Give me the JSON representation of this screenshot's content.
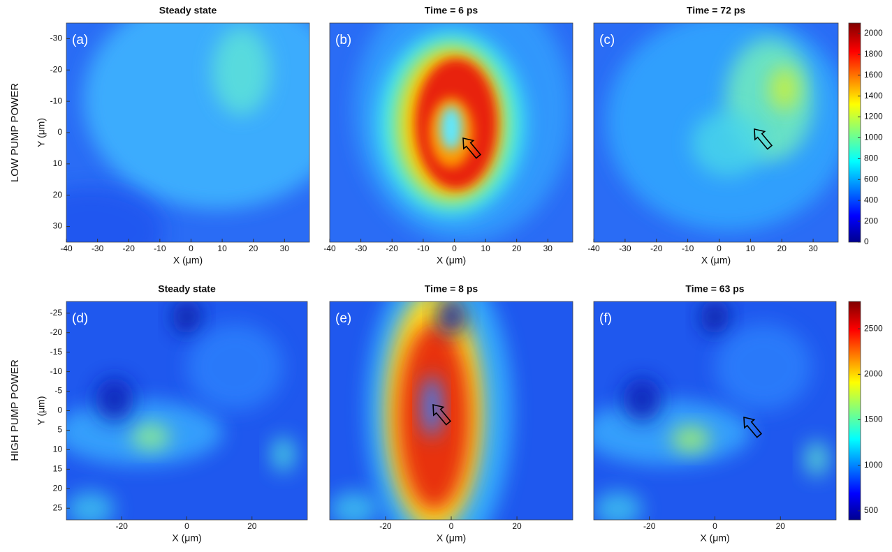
{
  "row_labels": [
    "LOW PUMP POWER",
    "HIGH PUMP POWER"
  ],
  "chart_data": [
    {
      "type": "heatmap",
      "panel": "(a)",
      "title": "Steady state",
      "xlabel": "X (μm)",
      "ylabel": "Y (μm)",
      "xlim": [
        -40,
        38
      ],
      "ylim": [
        -35,
        35
      ],
      "xticks": [
        -40,
        -30,
        -20,
        -10,
        0,
        10,
        20,
        30
      ],
      "yticks": [
        -30,
        -20,
        -10,
        0,
        10,
        20,
        30
      ]
    },
    {
      "type": "heatmap",
      "panel": "(b)",
      "title": "Time = 6 ps",
      "xlabel": "X (μm)",
      "xlim": [
        -40,
        38
      ],
      "ylim": [
        -35,
        35
      ],
      "xticks": [
        -40,
        -30,
        -20,
        -10,
        0,
        10,
        20,
        30
      ]
    },
    {
      "type": "heatmap",
      "panel": "(c)",
      "title": "Time = 72 ps",
      "xlabel": "X (μm)",
      "xlim": [
        -40,
        38
      ],
      "ylim": [
        -35,
        35
      ],
      "xticks": [
        -40,
        -30,
        -20,
        -10,
        0,
        10,
        20,
        30
      ],
      "clim": [
        0,
        2100
      ],
      "cticks": [
        0,
        200,
        400,
        600,
        800,
        1000,
        1200,
        1400,
        1600,
        1800,
        2000
      ]
    },
    {
      "type": "heatmap",
      "panel": "(d)",
      "title": "Steady state",
      "xlabel": "X (μm)",
      "ylabel": "Y (μm)",
      "xlim": [
        -37,
        37
      ],
      "ylim": [
        -28,
        28
      ],
      "xticks": [
        -20,
        0,
        20
      ],
      "yticks": [
        -25,
        -20,
        -15,
        -10,
        -5,
        0,
        5,
        10,
        15,
        20,
        25
      ]
    },
    {
      "type": "heatmap",
      "panel": "(e)",
      "title": "Time = 8 ps",
      "xlabel": "X (μm)",
      "xlim": [
        -37,
        37
      ],
      "ylim": [
        -28,
        28
      ],
      "xticks": [
        -20,
        0,
        20
      ]
    },
    {
      "type": "heatmap",
      "panel": "(f)",
      "title": "Time = 63 ps",
      "xlabel": "X (μm)",
      "xlim": [
        -37,
        37
      ],
      "ylim": [
        -28,
        28
      ],
      "xticks": [
        -20,
        0,
        20
      ],
      "clim": [
        400,
        2800
      ],
      "cticks": [
        500,
        1000,
        1500,
        2000,
        2500
      ]
    }
  ]
}
